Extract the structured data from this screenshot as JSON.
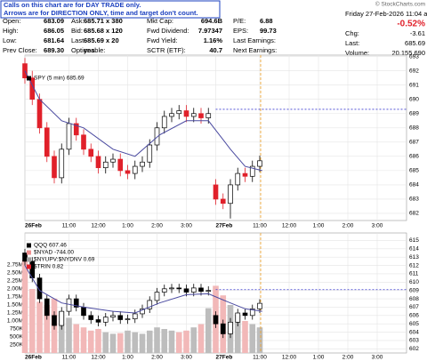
{
  "notice": [
    "Calls on this chart are for DAY TRADE only.",
    "Arrows are for DIRECTION ONLY, time and target don't count."
  ],
  "watermark": "© StockCharts.com",
  "header": {
    "rows": [
      [
        [
          "Open:",
          "683.09"
        ],
        [
          "Ask:",
          "685.71 x 380"
        ],
        [
          "Mkt Cap:",
          "694.6B"
        ],
        [
          "P/E:",
          "6.88"
        ]
      ],
      [
        [
          "High:",
          "686.05"
        ],
        [
          "Bid:",
          "685.68 x 120"
        ],
        [
          "Fwd Dividend:",
          "7.97347"
        ],
        [
          "EPS:",
          "99.73"
        ]
      ],
      [
        [
          "Low:",
          "681.64"
        ],
        [
          "Last:",
          "685.69 x 20"
        ],
        [
          "Fwd Yield:",
          "1.16%"
        ],
        [
          "Last Earnings:",
          ""
        ]
      ],
      [
        [
          "Prev Close:",
          "689.30"
        ],
        [
          "Optionable:",
          "yes"
        ],
        [
          "SCTR (ETF):",
          "40.7"
        ],
        [
          "Next Earnings:",
          ""
        ]
      ]
    ],
    "date": "Friday 27-Feb-2026 11:04 am",
    "change_pct": "-0.52%",
    "right_rows": [
      [
        "Chg:",
        "-3.61"
      ],
      [
        "Last:",
        "685.69"
      ],
      [
        "Volume:",
        "20,155,690"
      ]
    ]
  },
  "chart_data": [
    {
      "type": "candlestick",
      "legend": [
        {
          "name": "SPY (5 min) 685.69",
          "color": "#000000"
        }
      ],
      "x": [
        0,
        3,
        6,
        9,
        12,
        15,
        18,
        21,
        24,
        27,
        30,
        33,
        36,
        39,
        42,
        45,
        48,
        51,
        54,
        57,
        60,
        63,
        66,
        69,
        72,
        75,
        78,
        81,
        84,
        87,
        90,
        93,
        96
      ],
      "open": [
        692.5,
        691.5,
        690,
        688,
        686,
        684.5,
        686.5,
        688.3,
        687.5,
        686.5,
        686,
        685.2,
        685.6,
        685.8,
        685,
        684.8,
        685.3,
        685.6,
        686.8,
        688,
        688.8,
        689,
        689.2,
        688.8,
        689,
        688.7,
        684,
        683,
        682.7,
        684,
        684.8,
        684.6,
        685.3
      ],
      "high": [
        692.9,
        692,
        690.4,
        688.4,
        686.4,
        686.9,
        688.7,
        688.7,
        687.9,
        686.9,
        686.4,
        686,
        686.2,
        686.2,
        685.4,
        685.7,
        686,
        687.2,
        688.4,
        689.2,
        689.4,
        689.6,
        689.6,
        689.4,
        689.4,
        689.4,
        684.4,
        683.4,
        684.4,
        685.2,
        685.2,
        685.7,
        686.05
      ],
      "low": [
        691.1,
        689.6,
        687.6,
        685.6,
        684.1,
        684.1,
        686.1,
        687.1,
        686.1,
        685.6,
        684.8,
        684.8,
        685.2,
        684.6,
        684.4,
        684.4,
        684.9,
        685.2,
        686.4,
        687.6,
        688.4,
        688.6,
        688.4,
        688.4,
        688.3,
        688.3,
        682.6,
        682.3,
        681.64,
        683.6,
        684.2,
        684.2,
        684.9
      ],
      "close": [
        691.5,
        690,
        688,
        686,
        684.5,
        686.5,
        688.3,
        687.5,
        686.5,
        686,
        685.2,
        685.6,
        685.8,
        685,
        684.8,
        685.3,
        685.6,
        686.8,
        688,
        688.8,
        689,
        689.2,
        688.8,
        689,
        688.7,
        689,
        683,
        682.7,
        684,
        684.8,
        684.6,
        685.3,
        685.69
      ],
      "up_color": "#000000",
      "down_color": "#e0202a",
      "ma": {
        "x": [
          0,
          6,
          15,
          24,
          36,
          45,
          55,
          66,
          75,
          84,
          90,
          97
        ],
        "values": [
          692,
          690,
          688.5,
          688,
          686.5,
          686,
          687.5,
          688.5,
          688.5,
          686.5,
          685.3,
          685
        ],
        "color": "#4a4aa0"
      },
      "reference_line": 689.3,
      "xlim": [
        0,
        156
      ],
      "xticks": [
        {
          "value": 0,
          "label": "26Feb"
        },
        {
          "value": 18,
          "label": "11:00"
        },
        {
          "value": 30,
          "label": "12:00"
        },
        {
          "value": 42,
          "label": "1:00"
        },
        {
          "value": 54,
          "label": "2:00"
        },
        {
          "value": 66,
          "label": "3:00"
        },
        {
          "value": 78,
          "label": "27Feb"
        },
        {
          "value": 96,
          "label": "11:00"
        },
        {
          "value": 108,
          "label": "12:00"
        },
        {
          "value": 120,
          "label": "1:00"
        },
        {
          "value": 132,
          "label": "2:00"
        },
        {
          "value": 144,
          "label": "3:00"
        }
      ],
      "ylim": [
        681.5,
        693.1
      ],
      "yticks": [
        682,
        683,
        684,
        685,
        686,
        687,
        688,
        689,
        690,
        691,
        692,
        693
      ],
      "grid": true
    },
    {
      "type": "candlestick",
      "legend": [
        {
          "name": "QQQ 607.46",
          "color": "#000000"
        },
        {
          "name": "$NYAD -744.00",
          "color": "#f09090"
        },
        {
          "name": "$NYUPV:$NYDNV 0.69",
          "color": "#a0a0a0"
        },
        {
          "name": "$TRIN 0.82",
          "color": "#e0202a"
        }
      ],
      "x": [
        0,
        3,
        6,
        9,
        12,
        15,
        18,
        21,
        24,
        27,
        30,
        33,
        36,
        39,
        42,
        45,
        48,
        51,
        54,
        57,
        60,
        63,
        66,
        69,
        72,
        75,
        78,
        81,
        84,
        87,
        90,
        93,
        96
      ],
      "open": [
        613.5,
        612.5,
        610.5,
        608,
        606,
        604.8,
        606.5,
        608,
        607,
        606,
        605.5,
        605.2,
        605.8,
        606,
        605.5,
        605.6,
        606.2,
        606.8,
        607.8,
        608.8,
        609.2,
        609.3,
        609.2,
        608.8,
        609.3,
        608.9,
        606,
        605,
        603.8,
        605.2,
        606.3,
        606,
        606.8
      ],
      "high": [
        614,
        613,
        611,
        608.5,
        606.5,
        607,
        608.5,
        608.5,
        607.5,
        606.5,
        606,
        606.3,
        606.5,
        606.5,
        606.1,
        606.7,
        607.3,
        608.3,
        609.3,
        609.7,
        609.8,
        609.8,
        609.7,
        609.8,
        609.8,
        609.5,
        606.5,
        605.5,
        605.7,
        606.8,
        606.8,
        607.3,
        607.96
      ],
      "low": [
        612,
        610,
        607.5,
        605.5,
        604.3,
        604.3,
        606,
        606.5,
        605.5,
        605,
        604.7,
        604.7,
        605.3,
        605,
        605,
        605.1,
        605.7,
        606.3,
        607.3,
        608.3,
        608.7,
        608.7,
        608.3,
        608.3,
        608.4,
        608.4,
        604.5,
        603.3,
        603.3,
        604.7,
        605.5,
        605.5,
        606.3
      ],
      "close": [
        612.5,
        610.5,
        608,
        606,
        604.8,
        606.5,
        608,
        607,
        606,
        605.5,
        605.2,
        605.8,
        606,
        605.5,
        605.6,
        606.2,
        606.8,
        607.8,
        608.8,
        609.2,
        609.3,
        609.2,
        608.8,
        609.3,
        608.9,
        609,
        605,
        603.8,
        605.2,
        606.3,
        606,
        606.8,
        607.46
      ],
      "up_color": "#000000",
      "down_color": "#000000",
      "volume": [
        2900000,
        2000000,
        1600000,
        1500000,
        1700000,
        1300000,
        1100000,
        900000,
        800000,
        700000,
        750000,
        650000,
        600000,
        620000,
        700000,
        650000,
        600000,
        700000,
        800000,
        750000,
        700000,
        650000,
        700000,
        800000,
        900000,
        1400000,
        2100000,
        1800000,
        1500000,
        1200000,
        1000000,
        900000,
        800000
      ],
      "volume_up_color": "#bdbdbd",
      "volume_down_color": "#f2b8b8",
      "ma": {
        "x": [
          0,
          6,
          15,
          24,
          36,
          45,
          55,
          66,
          75,
          84,
          90,
          97
        ],
        "values": [
          612,
          609,
          607.5,
          607,
          606.5,
          606.3,
          607.5,
          608.5,
          608.6,
          607.5,
          606.8,
          606.5
        ],
        "color": "#4a4aa0"
      },
      "reference_line": 609.1,
      "xlim": [
        0,
        156
      ],
      "xticks": [
        {
          "value": 0,
          "label": "26Feb"
        },
        {
          "value": 18,
          "label": "11:00"
        },
        {
          "value": 30,
          "label": "12:00"
        },
        {
          "value": 42,
          "label": "1:00"
        },
        {
          "value": 54,
          "label": "2:00"
        },
        {
          "value": 66,
          "label": "3:00"
        },
        {
          "value": 78,
          "label": "27Feb"
        },
        {
          "value": 96,
          "label": "11:00"
        },
        {
          "value": 108,
          "label": "12:00"
        },
        {
          "value": 120,
          "label": "1:00"
        },
        {
          "value": 132,
          "label": "2:00"
        },
        {
          "value": 144,
          "label": "3:00"
        }
      ],
      "ylim": [
        601.5,
        615.9
      ],
      "yticks": [
        602,
        603,
        604,
        605,
        606,
        607,
        608,
        609,
        610,
        611,
        612,
        613,
        614,
        615
      ],
      "y2lim": [
        0,
        3750000
      ],
      "y2ticks": [
        {
          "value": 250000,
          "label": "250K"
        },
        {
          "value": 500000,
          "label": "500K"
        },
        {
          "value": 750000,
          "label": "750K"
        },
        {
          "value": 1000000,
          "label": "1.00M"
        },
        {
          "value": 1250000,
          "label": "1.25M"
        },
        {
          "value": 1500000,
          "label": "1.50M"
        },
        {
          "value": 1750000,
          "label": "1.75M"
        },
        {
          "value": 2000000,
          "label": "2.00M"
        },
        {
          "value": 2250000,
          "label": "2.25M"
        },
        {
          "value": 2500000,
          "label": "2.50M"
        },
        {
          "value": 2750000,
          "label": "2.75M"
        }
      ],
      "grid": true
    }
  ]
}
